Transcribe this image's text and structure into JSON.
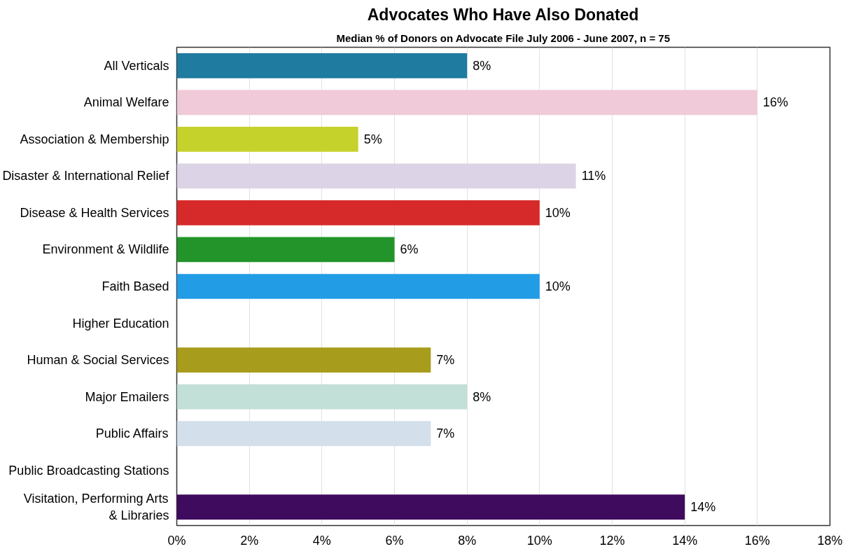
{
  "chart_data": {
    "type": "bar",
    "orientation": "horizontal",
    "title": "Advocates Who Have Also Donated",
    "subtitle": "Median % of Donors on Advocate File July 2006 - June 2007, n = 75",
    "categories": [
      "All Verticals",
      "Animal Welfare",
      "Association & Membership",
      "Disaster & International Relief",
      "Disease & Health Services",
      "Environment & Wildlife",
      "Faith Based",
      "Higher Education",
      "Human & Social Services",
      "Major Emailers",
      "Public Affairs",
      "Public Broadcasting Stations",
      "Visitation, Performing Arts\n& Libraries"
    ],
    "values": [
      8,
      16,
      5,
      11,
      10,
      6,
      10,
      null,
      7,
      8,
      7,
      null,
      14
    ],
    "value_labels": [
      "8%",
      "16%",
      "5%",
      "11%",
      "10%",
      "6%",
      "10%",
      null,
      "7%",
      "8%",
      "7%",
      null,
      "14%"
    ],
    "colors": [
      "#1f7ba0",
      "#f0cad8",
      "#c6d22c",
      "#dcd4e6",
      "#d62a2a",
      "#23942a",
      "#239ce6",
      null,
      "#a89c1c",
      "#c2dfd8",
      "#d3dfeb",
      null,
      "#3f0b5e"
    ],
    "xlim": [
      0,
      18
    ],
    "xticks": [
      {
        "value": 0,
        "label": "0%"
      },
      {
        "value": 2,
        "label": "2%"
      },
      {
        "value": 4,
        "label": "4%"
      },
      {
        "value": 6,
        "label": "6%"
      },
      {
        "value": 8,
        "label": "8%"
      },
      {
        "value": 10,
        "label": "10%"
      },
      {
        "value": 12,
        "label": "12%"
      },
      {
        "value": 14,
        "label": "14%"
      },
      {
        "value": 16,
        "label": "16%"
      },
      {
        "value": 18,
        "label": "18%"
      }
    ],
    "grid": "x"
  }
}
